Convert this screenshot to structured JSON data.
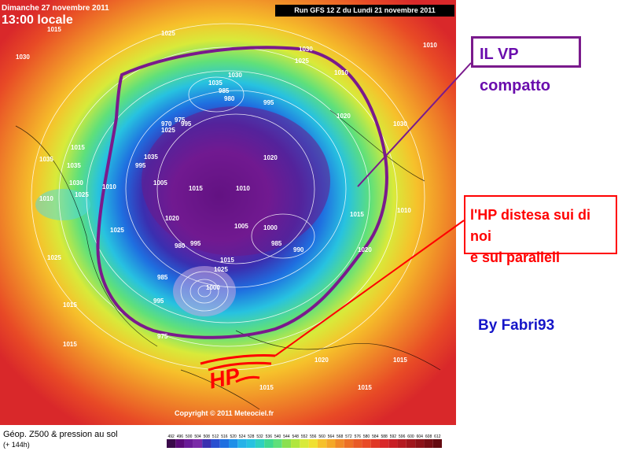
{
  "header": {
    "date": "Dimanche 27 novembre 2011",
    "time": "13:00 locale",
    "run": "Run GFS 12 Z du Lundi 21 novembre 2011"
  },
  "map": {
    "copyright": "Copyright © 2011 Meteociel.fr",
    "isobar_labels": [
      "1015",
      "1025",
      "1030",
      "1025",
      "1010",
      "1030",
      "1020",
      "1015",
      "1010",
      "1035",
      "1035",
      "1030",
      "1025",
      "1010",
      "1010",
      "1025",
      "1035",
      "995",
      "1005",
      "1015",
      "1010",
      "1020",
      "1020",
      "1025",
      "1030",
      "1035",
      "985",
      "980",
      "975",
      "970",
      "995",
      "995",
      "1005",
      "1000",
      "985",
      "990",
      "985",
      "980",
      "995",
      "1015",
      "1025",
      "1000",
      "995",
      "975",
      "1025",
      "1015",
      "1015",
      "1020",
      "1015",
      "1015",
      "1015",
      "1010",
      "1015",
      "1020",
      "1030"
    ],
    "hp_mark": "HP"
  },
  "annotations": {
    "vp_label": "IL VP compatto",
    "hp_line1": "l'HP distesa sui di noi",
    "hp_line2": "e sui paralleli",
    "byline": "By Fabri93"
  },
  "legend": {
    "title": "Géop. Z500 & pression au sol",
    "subtitle": "(+ 144h)",
    "scale_labels": [
      "492",
      "496",
      "500",
      "504",
      "508",
      "512",
      "516",
      "520",
      "524",
      "528",
      "532",
      "536",
      "540",
      "544",
      "548",
      "552",
      "556",
      "560",
      "564",
      "568",
      "572",
      "576",
      "580",
      "584",
      "588",
      "592",
      "596",
      "600",
      "604",
      "608",
      "612"
    ]
  },
  "colors": {
    "vp_outline": "#7a1a8c",
    "hp_arrow": "#ff0000",
    "byline": "#1515c8"
  }
}
